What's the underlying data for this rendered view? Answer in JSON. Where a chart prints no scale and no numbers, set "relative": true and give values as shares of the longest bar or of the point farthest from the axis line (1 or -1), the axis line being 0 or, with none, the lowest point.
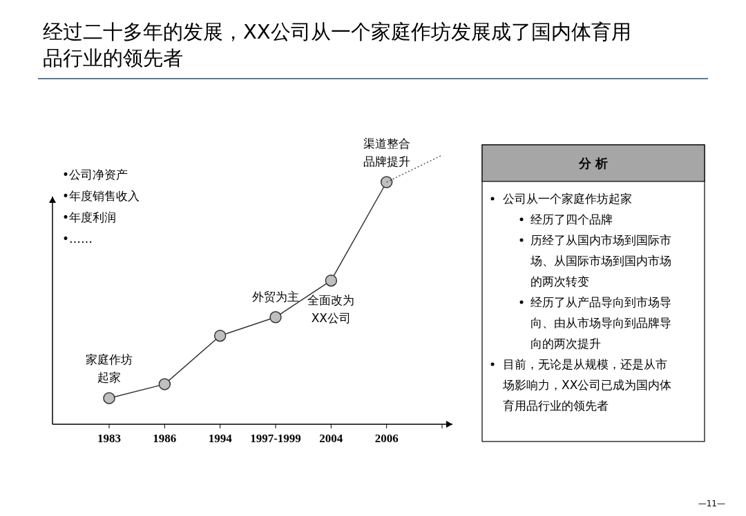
{
  "chart_data": [
    {
      "type": "line",
      "title": "经过二十多年的发展，XX公司从一个家庭作坊发展成了国内体育用品行业的领先者",
      "relative": true,
      "categories": [
        "1983",
        "1986",
        "1994",
        "1997-1999",
        "2004",
        "2006",
        null
      ],
      "marker": "circle",
      "series": [
        {
          "color": "#333333",
          "values": [
            0.097,
            0.149,
            0.329,
            0.398,
            0.534,
            0.9,
            null
          ]
        },
        {
          "color": "#555555",
          "type": "line",
          "marker": "none",
          "line_style": "dotted",
          "values": [
            null,
            null,
            null,
            null,
            null,
            0.9,
            1
          ]
        }
      ],
      "annotations": [
        "•公司净资产",
        "•年度销售收入",
        "•年度利润",
        "•……",
        {
          "text": "家庭作坊起家",
          "x": "1983",
          "y": 0.097
        },
        {
          "text": "外贸为主",
          "x": "1997-1999",
          "y": 0.398
        },
        {
          "text": "全面改为XX公司",
          "x": "2004",
          "y": 0.534
        },
        {
          "text": "渠道整合品牌提升",
          "x": "2006",
          "y": 0.9
        }
      ]
    },
    {
      "type": "other",
      "title": "分 析",
      "annotations": [
        "公司从一个家庭作坊起家",
        "经历了四个品牌",
        "历经了从国内市场到国际市场、从国际市场到国内市场的两次转变",
        "经历了从产品导向到市场导向、由从市场导向到品牌导向的两次提升",
        "目前，无论是从规模，还是从市场影响力，XX公司已成为国内体育用品行业的领先者",
        "—11—"
      ]
    }
  ]
}
